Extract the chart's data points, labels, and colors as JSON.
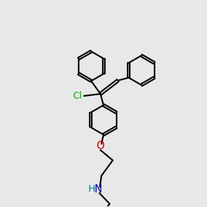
{
  "background_color": "#e8e8e8",
  "bond_color": "#000000",
  "cl_color": "#00bb00",
  "o_color": "#cc0000",
  "n_color": "#0000cc",
  "h_color": "#008888",
  "line_width": 1.6,
  "font_size": 10,
  "figsize": [
    3.0,
    3.0
  ],
  "dpi": 100,
  "xlim": [
    0,
    10
  ],
  "ylim": [
    0,
    10
  ]
}
